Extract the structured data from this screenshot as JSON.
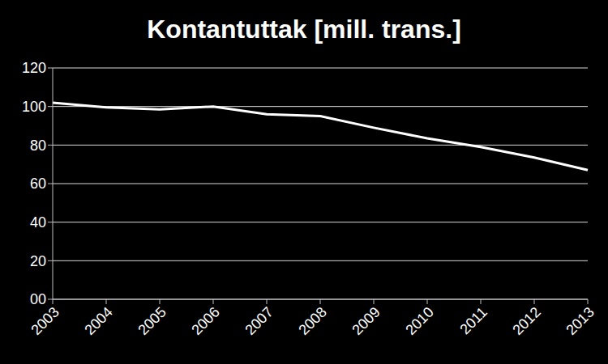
{
  "chart_data": {
    "type": "line",
    "title": "Kontantuttak [mill. trans.]",
    "categories": [
      "2003",
      "2004",
      "2005",
      "2006",
      "2007",
      "2008",
      "2009",
      "2010",
      "2011",
      "2012",
      "2013"
    ],
    "values": [
      102,
      99.5,
      98.5,
      100,
      96,
      95,
      89,
      83.5,
      79,
      73.5,
      67
    ],
    "color": "#ffffff",
    "ylim": [
      0,
      120
    ],
    "yticks": [
      {
        "value": 0,
        "label": "00"
      },
      20,
      40,
      60,
      80,
      100,
      120
    ],
    "grid": true
  }
}
